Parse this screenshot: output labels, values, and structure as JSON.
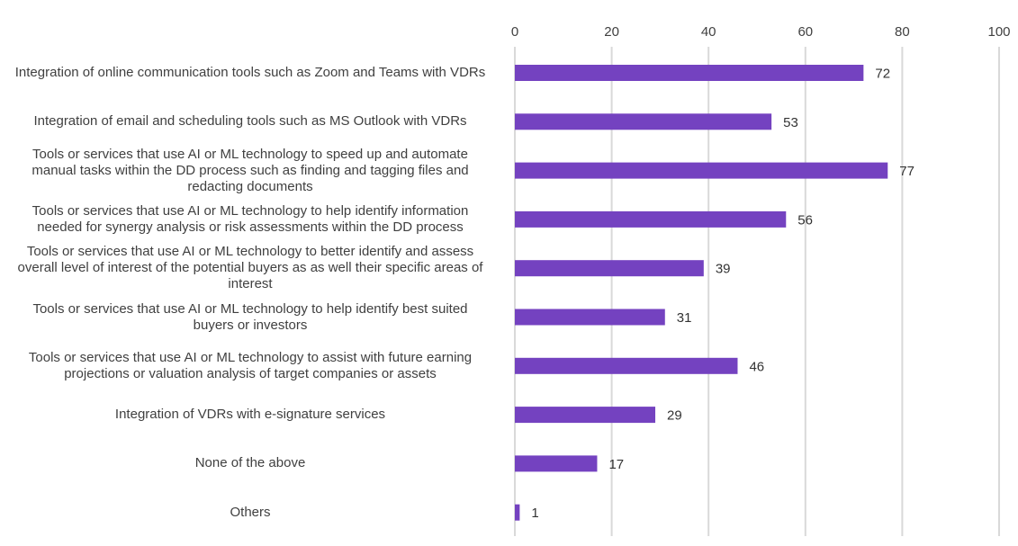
{
  "chart_data": {
    "type": "bar",
    "orientation": "horizontal",
    "title": "",
    "xlabel": "",
    "ylabel": "",
    "xlim": [
      0,
      100
    ],
    "x_ticks": [
      "0",
      "20",
      "40",
      "60",
      "80",
      "100"
    ],
    "x_axis_position": "top",
    "grid": true,
    "legend": "none",
    "bar_color": "#7442c0",
    "grid_color": "#d9d9d9",
    "categories": [
      "Integration of online communication tools such as Zoom and Teams with VDRs",
      "Integration of email and scheduling tools such as MS Outlook with VDRs",
      "Tools or services that use AI or ML technology to speed up and automate manual tasks within the DD process such as finding and tagging files and redacting documents",
      "Tools or services that use AI or ML technology to help identify information needed for synergy analysis or risk assessments within the DD process",
      "Tools or services that use AI or ML technology to better identify and assess overall level of interest of the potential buyers as as well their specific areas of interest",
      "Tools or services that use AI or ML technology to help identify best suited buyers or investors",
      "Tools or services that use AI or ML technology to assist with future earning projections or valuation analysis of target companies or assets",
      "Integration of VDRs with e-signature services",
      "None of the above",
      "Others"
    ],
    "category_lines": [
      [
        "Integration of online communication tools such as Zoom and Teams with VDRs"
      ],
      [
        "Integration of email and scheduling tools such as MS Outlook with VDRs"
      ],
      [
        "Tools or services that use AI or ML technology to speed up and automate",
        "manual tasks within the DD process such as finding and tagging files and",
        "redacting documents"
      ],
      [
        "Tools or services that use AI or ML technology to help identify information",
        "needed for synergy analysis or risk assessments within the DD process"
      ],
      [
        "Tools or services that use AI or ML technology to better identify and assess",
        "overall level of interest of the potential buyers as as well their specific areas of",
        "interest"
      ],
      [
        "Tools or services that use AI or ML technology to help identify best suited",
        "buyers or investors"
      ],
      [
        "Tools or services that use AI or ML technology to assist with future earning",
        "projections or valuation analysis of target companies or assets"
      ],
      [
        "Integration of VDRs with e-signature services"
      ],
      [
        "None of the above"
      ],
      [
        "Others"
      ]
    ],
    "values": [
      72,
      53,
      77,
      56,
      39,
      31,
      46,
      29,
      17,
      1
    ]
  }
}
